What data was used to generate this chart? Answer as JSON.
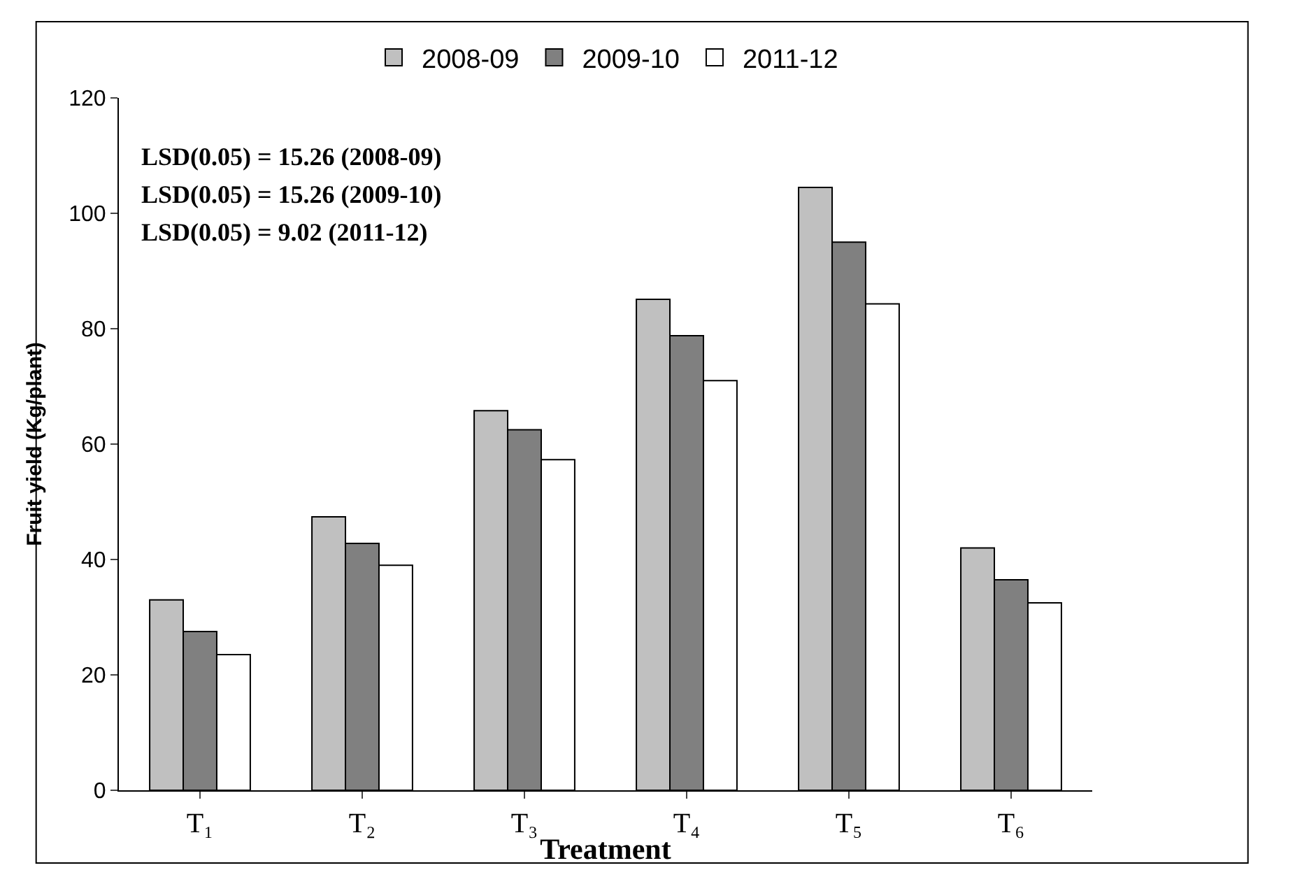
{
  "chart_data": {
    "type": "bar",
    "xlabel": "Treatment",
    "ylabel": "Fruit yield (Kg/plant)",
    "categories": [
      "T₁",
      "T₂",
      "T₃",
      "T₄",
      "T₅",
      "T₆"
    ],
    "series": [
      {
        "name": "2008-09",
        "color": "#c0c0c0",
        "values": [
          33,
          47.4,
          65.8,
          85.1,
          104.5,
          42
        ]
      },
      {
        "name": "2009-10",
        "color": "#808080",
        "values": [
          27.5,
          42.8,
          62.5,
          78.8,
          95,
          36.5
        ]
      },
      {
        "name": "2011-12",
        "color": "#ffffff",
        "values": [
          23.5,
          39,
          57.3,
          71,
          84.3,
          32.5
        ]
      }
    ],
    "ylim": [
      0,
      120
    ],
    "yticks": [
      0,
      20,
      40,
      60,
      80,
      100,
      120
    ],
    "annotations": [
      "LSD(0.05) = 15.26 (2008-09)",
      "LSD(0.05) = 15.26 (2009-10)",
      "LSD(0.05) = 9.02 (2011-12)"
    ],
    "legend": "top"
  }
}
